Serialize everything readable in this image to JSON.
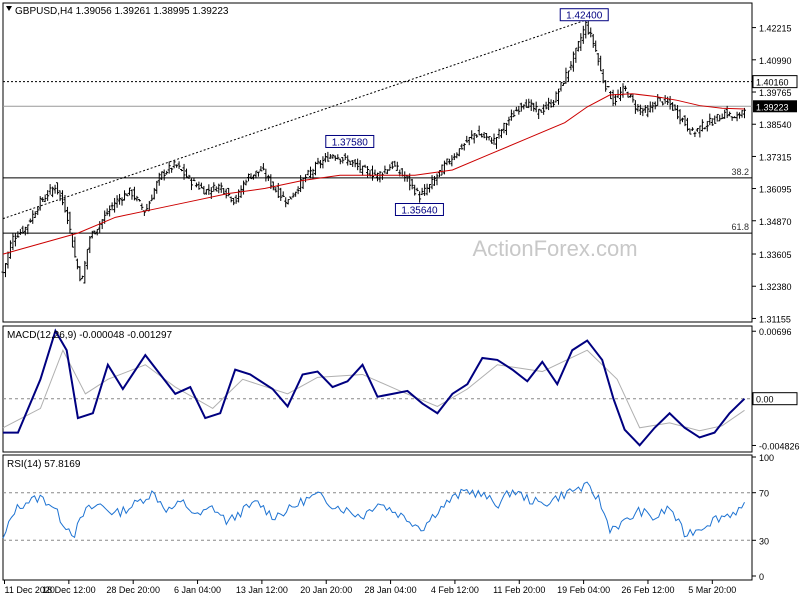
{
  "chart_data": {
    "type": "candlestick",
    "header": {
      "symbol": "GBPUSD,H4",
      "open": "1.39056",
      "high": "1.39261",
      "low": "1.38995",
      "close": "1.39223"
    },
    "watermark": "ActionForex.com",
    "price_axis": {
      "ylim": [
        1.3102,
        1.4315
      ],
      "ticks": [
        "1.42215",
        "1.40990",
        "1.39765",
        "1.38540",
        "1.37315",
        "1.36095",
        "1.34870",
        "1.33605",
        "1.32380",
        "1.31155"
      ],
      "ref_labels": [
        {
          "value": 1.4016,
          "label": "1.40160",
          "style": "dotted"
        },
        {
          "value": 1.39223,
          "label": "1.39223",
          "style": "current"
        }
      ]
    },
    "fib_levels": [
      {
        "value": 1.365,
        "label": "38.2"
      },
      {
        "value": 1.344,
        "label": "61.8"
      }
    ],
    "annotations": [
      {
        "label": "1.42400",
        "value": 1.424,
        "x": 0.776
      },
      {
        "label": "1.37580",
        "value": 1.3758,
        "x": 0.463
      },
      {
        "label": "1.35640",
        "value": 1.3564,
        "x": 0.556
      }
    ],
    "x_axis": {
      "labels": [
        "11 Dec 2020",
        "18 Dec 12:00",
        "28 Dec 20:00",
        "6 Jan 04:00",
        "13 Jan 12:00",
        "20 Jan 20:00",
        "28 Jan 04:00",
        "4 Feb 12:00",
        "11 Feb 20:00",
        "19 Feb 04:00",
        "26 Feb 12:00",
        "5 Mar 20:00"
      ]
    },
    "price_path": [
      [
        0.0,
        1.329
      ],
      [
        0.012,
        1.342
      ],
      [
        0.03,
        1.346
      ],
      [
        0.05,
        1.356
      ],
      [
        0.07,
        1.362
      ],
      [
        0.085,
        1.352
      ],
      [
        0.095,
        1.336
      ],
      [
        0.105,
        1.325
      ],
      [
        0.115,
        1.342
      ],
      [
        0.13,
        1.348
      ],
      [
        0.15,
        1.356
      ],
      [
        0.17,
        1.36
      ],
      [
        0.19,
        1.352
      ],
      [
        0.21,
        1.366
      ],
      [
        0.23,
        1.37
      ],
      [
        0.25,
        1.364
      ],
      [
        0.27,
        1.36
      ],
      [
        0.29,
        1.362
      ],
      [
        0.31,
        1.356
      ],
      [
        0.325,
        1.365
      ],
      [
        0.345,
        1.368
      ],
      [
        0.365,
        1.36
      ],
      [
        0.38,
        1.356
      ],
      [
        0.4,
        1.364
      ],
      [
        0.42,
        1.37
      ],
      [
        0.44,
        1.374
      ],
      [
        0.463,
        1.371
      ],
      [
        0.48,
        1.368
      ],
      [
        0.5,
        1.366
      ],
      [
        0.52,
        1.37
      ],
      [
        0.54,
        1.364
      ],
      [
        0.556,
        1.358
      ],
      [
        0.57,
        1.362
      ],
      [
        0.59,
        1.37
      ],
      [
        0.61,
        1.376
      ],
      [
        0.63,
        1.382
      ],
      [
        0.655,
        1.379
      ],
      [
        0.675,
        1.387
      ],
      [
        0.695,
        1.394
      ],
      [
        0.715,
        1.39
      ],
      [
        0.735,
        1.394
      ],
      [
        0.75,
        1.403
      ],
      [
        0.765,
        1.413
      ],
      [
        0.778,
        1.4235
      ],
      [
        0.79,
        1.415
      ],
      [
        0.8,
        1.403
      ],
      [
        0.815,
        1.394
      ],
      [
        0.83,
        1.399
      ],
      [
        0.845,
        1.392
      ],
      [
        0.86,
        1.39
      ],
      [
        0.875,
        1.395
      ],
      [
        0.89,
        1.393
      ],
      [
        0.905,
        1.388
      ],
      [
        0.92,
        1.382
      ],
      [
        0.935,
        1.385
      ],
      [
        0.95,
        1.387
      ],
      [
        0.965,
        1.39
      ],
      [
        0.978,
        1.387
      ],
      [
        0.99,
        1.3922
      ]
    ],
    "ma_path": [
      [
        0.0,
        1.336
      ],
      [
        0.05,
        1.34
      ],
      [
        0.1,
        1.344
      ],
      [
        0.15,
        1.35
      ],
      [
        0.2,
        1.353
      ],
      [
        0.25,
        1.356
      ],
      [
        0.3,
        1.359
      ],
      [
        0.35,
        1.361
      ],
      [
        0.4,
        1.364
      ],
      [
        0.45,
        1.366
      ],
      [
        0.5,
        1.366
      ],
      [
        0.55,
        1.366
      ],
      [
        0.6,
        1.368
      ],
      [
        0.65,
        1.374
      ],
      [
        0.7,
        1.38
      ],
      [
        0.75,
        1.386
      ],
      [
        0.78,
        1.392
      ],
      [
        0.81,
        1.3965
      ],
      [
        0.84,
        1.397
      ],
      [
        0.87,
        1.396
      ],
      [
        0.9,
        1.3945
      ],
      [
        0.93,
        1.3925
      ],
      [
        0.96,
        1.3915
      ],
      [
        0.99,
        1.3912
      ]
    ],
    "trendline": {
      "from": [
        0.0,
        1.3495
      ],
      "to": [
        0.778,
        1.425
      ]
    },
    "macd": {
      "label": "MACD(12,26,9) -0.000048 -0.001297",
      "ylim": [
        -0.0055,
        0.0075
      ],
      "ticks": [
        "0.00696",
        "0.00",
        "-0.004826"
      ],
      "zero_label": "0.00",
      "main_path": [
        [
          0.0,
          -0.0035
        ],
        [
          0.02,
          -0.0035
        ],
        [
          0.05,
          0.002
        ],
        [
          0.07,
          0.007
        ],
        [
          0.085,
          0.005
        ],
        [
          0.1,
          -0.002
        ],
        [
          0.12,
          -0.0015
        ],
        [
          0.14,
          0.0035
        ],
        [
          0.16,
          0.001
        ],
        [
          0.19,
          0.0045
        ],
        [
          0.21,
          0.0025
        ],
        [
          0.23,
          0.0005
        ],
        [
          0.25,
          0.0012
        ],
        [
          0.27,
          -0.002
        ],
        [
          0.29,
          -0.0015
        ],
        [
          0.31,
          0.003
        ],
        [
          0.33,
          0.0025
        ],
        [
          0.36,
          0.001
        ],
        [
          0.38,
          -0.0008
        ],
        [
          0.4,
          0.0025
        ],
        [
          0.42,
          0.0028
        ],
        [
          0.44,
          0.0012
        ],
        [
          0.46,
          0.0018
        ],
        [
          0.48,
          0.0035
        ],
        [
          0.5,
          0.0002
        ],
        [
          0.52,
          0.0005
        ],
        [
          0.54,
          0.0008
        ],
        [
          0.56,
          -0.0005
        ],
        [
          0.58,
          -0.0015
        ],
        [
          0.6,
          0.0005
        ],
        [
          0.62,
          0.0015
        ],
        [
          0.64,
          0.0042
        ],
        [
          0.66,
          0.004
        ],
        [
          0.68,
          0.003
        ],
        [
          0.7,
          0.0018
        ],
        [
          0.72,
          0.0038
        ],
        [
          0.74,
          0.0015
        ],
        [
          0.76,
          0.005
        ],
        [
          0.78,
          0.006
        ],
        [
          0.8,
          0.004
        ],
        [
          0.815,
          0.0
        ],
        [
          0.83,
          -0.0032
        ],
        [
          0.85,
          -0.0048
        ],
        [
          0.87,
          -0.003
        ],
        [
          0.89,
          -0.0015
        ],
        [
          0.91,
          -0.003
        ],
        [
          0.93,
          -0.004
        ],
        [
          0.95,
          -0.0035
        ],
        [
          0.97,
          -0.0015
        ],
        [
          0.99,
          0.0
        ]
      ],
      "signal_path": [
        [
          0.0,
          -0.003
        ],
        [
          0.05,
          -0.001
        ],
        [
          0.08,
          0.005
        ],
        [
          0.11,
          0.0005
        ],
        [
          0.14,
          0.002
        ],
        [
          0.19,
          0.0035
        ],
        [
          0.23,
          0.0012
        ],
        [
          0.28,
          -0.001
        ],
        [
          0.32,
          0.002
        ],
        [
          0.38,
          0.0005
        ],
        [
          0.42,
          0.0022
        ],
        [
          0.48,
          0.0025
        ],
        [
          0.53,
          0.0008
        ],
        [
          0.58,
          -0.0008
        ],
        [
          0.62,
          0.001
        ],
        [
          0.66,
          0.0035
        ],
        [
          0.72,
          0.0028
        ],
        [
          0.78,
          0.005
        ],
        [
          0.82,
          0.002
        ],
        [
          0.85,
          -0.003
        ],
        [
          0.89,
          -0.0025
        ],
        [
          0.93,
          -0.0033
        ],
        [
          0.96,
          -0.0028
        ],
        [
          0.99,
          -0.0012
        ]
      ]
    },
    "rsi": {
      "label": "RSI(14) 57.8169",
      "ylim": [
        0,
        100
      ],
      "ticks": [
        "100",
        "70",
        "30",
        "0"
      ],
      "levels": [
        70,
        30
      ],
      "path": [
        [
          0.0,
          30
        ],
        [
          0.015,
          55
        ],
        [
          0.03,
          62
        ],
        [
          0.05,
          66
        ],
        [
          0.065,
          60
        ],
        [
          0.08,
          45
        ],
        [
          0.095,
          35
        ],
        [
          0.11,
          55
        ],
        [
          0.13,
          60
        ],
        [
          0.15,
          52
        ],
        [
          0.17,
          58
        ],
        [
          0.2,
          70
        ],
        [
          0.22,
          55
        ],
        [
          0.24,
          62
        ],
        [
          0.26,
          50
        ],
        [
          0.28,
          58
        ],
        [
          0.3,
          45
        ],
        [
          0.32,
          55
        ],
        [
          0.34,
          62
        ],
        [
          0.36,
          50
        ],
        [
          0.38,
          55
        ],
        [
          0.4,
          63
        ],
        [
          0.42,
          68
        ],
        [
          0.44,
          60
        ],
        [
          0.46,
          55
        ],
        [
          0.48,
          50
        ],
        [
          0.5,
          62
        ],
        [
          0.52,
          55
        ],
        [
          0.54,
          48
        ],
        [
          0.56,
          40
        ],
        [
          0.58,
          55
        ],
        [
          0.6,
          65
        ],
        [
          0.62,
          72
        ],
        [
          0.64,
          68
        ],
        [
          0.66,
          60
        ],
        [
          0.68,
          72
        ],
        [
          0.7,
          65
        ],
        [
          0.72,
          60
        ],
        [
          0.74,
          66
        ],
        [
          0.76,
          72
        ],
        [
          0.78,
          75
        ],
        [
          0.795,
          65
        ],
        [
          0.81,
          40
        ],
        [
          0.83,
          45
        ],
        [
          0.85,
          55
        ],
        [
          0.87,
          48
        ],
        [
          0.89,
          58
        ],
        [
          0.91,
          35
        ],
        [
          0.93,
          40
        ],
        [
          0.95,
          48
        ],
        [
          0.97,
          52
        ],
        [
          0.99,
          58
        ]
      ]
    }
  }
}
